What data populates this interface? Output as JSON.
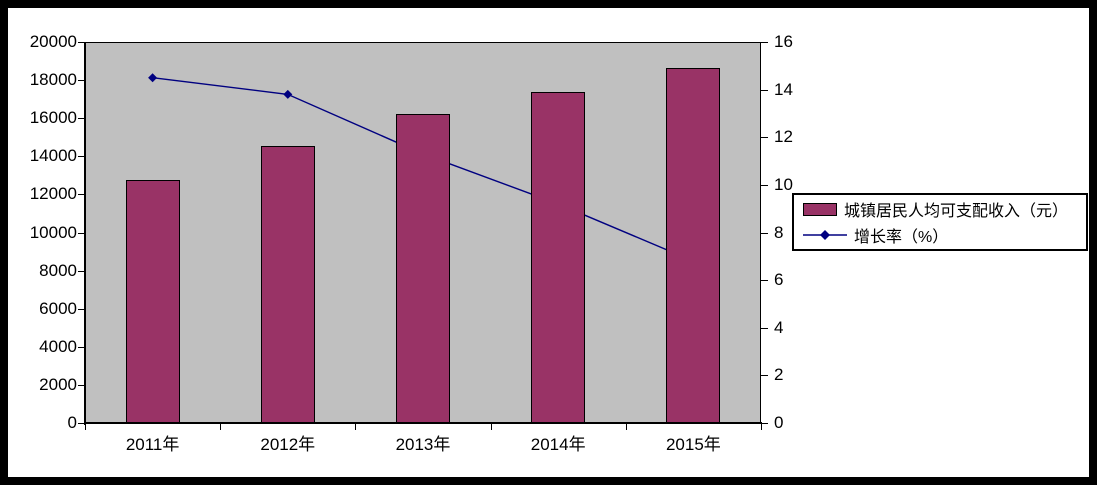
{
  "window": {
    "background_color": "#ffffff",
    "frame_color": "#000000"
  },
  "chart_data": {
    "type": "combo-bar-line",
    "title": "",
    "categories": [
      "2011年",
      "2012年",
      "2013年",
      "2014年",
      "2015年"
    ],
    "series": [
      {
        "name": "城镇居民人均可支配收入（元）",
        "type": "bar",
        "axis": "left",
        "color": "#993366",
        "values": [
          12750,
          14550,
          16200,
          17400,
          18650
        ]
      },
      {
        "name": "增长率（%）",
        "type": "line",
        "axis": "right",
        "color": "#000080",
        "marker": "diamond",
        "values": [
          14.5,
          13.8,
          11.3,
          9.2,
          6.8
        ]
      }
    ],
    "left_axis": {
      "min": 0,
      "max": 20000,
      "step": 2000,
      "tick_labels": [
        "0",
        "2000",
        "4000",
        "6000",
        "8000",
        "10000",
        "12000",
        "14000",
        "16000",
        "18000",
        "20000"
      ]
    },
    "right_axis": {
      "min": 0,
      "max": 16,
      "step": 2,
      "tick_labels": [
        "0",
        "2",
        "4",
        "6",
        "8",
        "10",
        "12",
        "14",
        "16"
      ]
    },
    "grid": false,
    "plot_background": "#c0c0c0",
    "legend_position": "middle-right"
  }
}
